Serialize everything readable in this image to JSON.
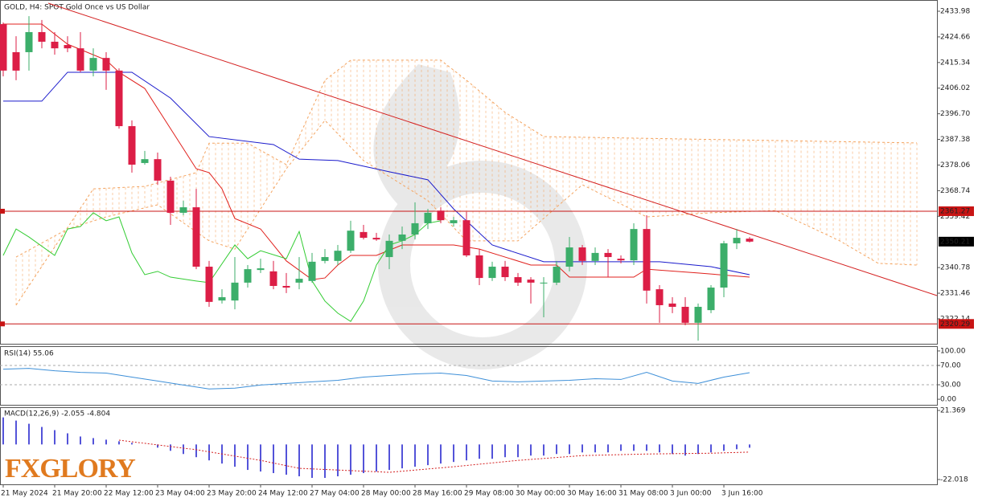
{
  "chart_data": [
    {
      "type": "candlestick",
      "title": "GOLD, H4:  SPOT Gold Once vs US Dollar",
      "categories": [
        "21 May 2024",
        null,
        null,
        null,
        "21 May 20:00",
        null,
        null,
        null,
        "22 May 12:00",
        null,
        null,
        null,
        "23 May 04:00",
        null,
        null,
        null,
        "23 May 20:00",
        null,
        null,
        null,
        "24 May 12:00",
        null,
        null,
        null,
        "27 May 04:00",
        null,
        null,
        null,
        "28 May 00:00",
        null,
        null,
        null,
        "28 May 16:00",
        null,
        null,
        null,
        "29 May 08:00",
        null,
        null,
        null,
        "30 May 00:00",
        null,
        null,
        null,
        "30 May 16:00",
        null,
        null,
        null,
        "31 May 08:00",
        null,
        null,
        null,
        "3 Jun 00:00",
        null,
        null,
        null,
        "3 Jun 16:00",
        null,
        null
      ],
      "open": [
        2429.3,
        2419.1,
        2419.1,
        2426.4,
        2422.9,
        2421.7,
        2420.5,
        2412.4,
        2417.0,
        2412.4,
        2392.2,
        2378.8,
        2380.2,
        2372.4,
        2360.7,
        2362.7,
        2341.1,
        2328.8,
        2328.8,
        2335.3,
        2339.9,
        2339.4,
        2334.1,
        2335.3,
        2335.9,
        2343.2,
        2343.2,
        2346.9,
        2353.7,
        2351.6,
        2344.6,
        2350.5,
        2352.8,
        2356.9,
        2361.5,
        2356.9,
        2358.0,
        2345.2,
        2337.0,
        2341.1,
        2337.3,
        2336.4,
        2335.0,
        2335.3,
        2341.1,
        2348.1,
        2343.2,
        2346.1,
        2344.0,
        2343.4,
        2354.8,
        2332.9,
        2327.7,
        2326.5,
        2320.7,
        2325.3,
        2333.5,
        2349.6,
        2351.3
      ],
      "high": [
        2429.9,
        2424.9,
        2432.2,
        2430.8,
        2426.4,
        2424.9,
        2426.4,
        2420.5,
        2419.1,
        2413.2,
        2394.3,
        2383.2,
        2382.6,
        2373.8,
        2365.1,
        2369.4,
        2343.2,
        2332.9,
        2344.6,
        2341.7,
        2344.0,
        2343.2,
        2338.8,
        2344.6,
        2346.1,
        2347.5,
        2349.0,
        2357.8,
        2356.3,
        2353.4,
        2352.8,
        2355.7,
        2364.5,
        2362.1,
        2362.7,
        2359.2,
        2361.0,
        2347.5,
        2342.9,
        2343.2,
        2338.8,
        2337.3,
        2337.3,
        2343.2,
        2351.9,
        2349.0,
        2348.1,
        2347.5,
        2345.2,
        2356.9,
        2359.8,
        2334.4,
        2330.0,
        2330.0,
        2327.7,
        2334.4,
        2350.5,
        2354.8,
        2351.9
      ],
      "low": [
        2410.3,
        2408.9,
        2412.4,
        2420.5,
        2418.2,
        2419.1,
        2411.8,
        2410.3,
        2405.4,
        2391.3,
        2375.3,
        2378.2,
        2370.9,
        2356.3,
        2359.8,
        2340.2,
        2326.5,
        2327.7,
        2325.6,
        2333.5,
        2338.8,
        2332.9,
        2331.5,
        2332.9,
        2335.3,
        2342.3,
        2341.7,
        2346.1,
        2351.0,
        2350.5,
        2340.2,
        2347.5,
        2351.0,
        2354.8,
        2356.9,
        2355.7,
        2344.6,
        2334.4,
        2335.9,
        2335.9,
        2334.1,
        2327.7,
        2322.7,
        2334.4,
        2339.4,
        2341.7,
        2341.7,
        2337.3,
        2342.3,
        2341.7,
        2327.7,
        2320.7,
        2324.2,
        2319.8,
        2314.2,
        2324.2,
        2330.0,
        2347.5,
        2349.9
      ],
      "close": [
        2412.4,
        2412.4,
        2426.4,
        2422.9,
        2420.5,
        2420.5,
        2412.4,
        2417.0,
        2412.4,
        2392.2,
        2378.2,
        2380.2,
        2372.4,
        2360.7,
        2362.7,
        2341.1,
        2328.3,
        2330.0,
        2335.3,
        2340.2,
        2340.5,
        2334.1,
        2333.5,
        2336.7,
        2342.9,
        2344.6,
        2346.9,
        2354.2,
        2351.6,
        2351.0,
        2350.5,
        2352.8,
        2356.9,
        2360.7,
        2358.0,
        2358.0,
        2345.2,
        2337.0,
        2341.1,
        2337.3,
        2335.3,
        2335.3,
        2335.3,
        2341.1,
        2348.1,
        2343.2,
        2346.1,
        2344.6,
        2343.4,
        2354.8,
        2332.4,
        2327.1,
        2326.5,
        2320.7,
        2326.5,
        2333.5,
        2349.6,
        2351.6,
        2350.21
      ],
      "up_color": "#3cae6a",
      "down_color": "#dc1e46",
      "xlim": [
        -0.25,
        72.56
      ],
      "ylim": [
        2313.07,
        2438.07
      ],
      "yticks": [
        2433.98,
        2424.66,
        2415.34,
        2406.02,
        {
          "value": 2396.7,
          "label": "2396.70"
        },
        2387.38,
        2378.06,
        2368.74,
        2359.42,
        2340.78,
        2331.46,
        2322.14
      ],
      "lines": [
        {
          "color": "#f4a460",
          "style": "dashed",
          "x": [
            1,
            7,
            11,
            15,
            16,
            19,
            22,
            25,
            27,
            34,
            36,
            39,
            42,
            71
          ],
          "values": [
            2327.1,
            2369.4,
            2370.3,
            2375.3,
            2386.0,
            2386.0,
            2378.2,
            2408.9,
            2416.2,
            2416.2,
            2408.9,
            2397.2,
            2388.4,
            2386.1
          ]
        },
        {
          "color": "#f4a460",
          "style": "dashed",
          "x": [
            1,
            5,
            8,
            12,
            16,
            18,
            22,
            25,
            28,
            33,
            36,
            40,
            45,
            50,
            55,
            60,
            65,
            68,
            71
          ],
          "values": [
            2344.6,
            2354.8,
            2359.2,
            2363.6,
            2350.5,
            2347.5,
            2376.7,
            2394.3,
            2379.7,
            2365.1,
            2350.5,
            2350.5,
            2370.9,
            2359.2,
            2360.7,
            2361.5,
            2350.5,
            2342.3,
            2341.7
          ]
        },
        {
          "color": "#1a1acc",
          "style": "solid",
          "x": [
            0,
            3,
            5,
            10,
            13,
            16,
            21,
            23,
            26,
            30,
            33,
            35,
            38,
            42,
            51,
            55,
            58
          ],
          "values": [
            2401.3,
            2401.3,
            2411.8,
            2411.8,
            2402.4,
            2388.4,
            2385.5,
            2380.2,
            2379.7,
            2375.6,
            2372.7,
            2362.1,
            2349.0,
            2342.9,
            2342.9,
            2341.1,
            2338.2
          ]
        },
        {
          "color": "#e0201c",
          "style": "solid",
          "x": [
            0,
            3,
            5,
            8,
            9,
            11,
            13,
            15,
            16,
            17,
            18,
            20,
            22,
            24,
            25,
            26,
            27,
            29,
            31,
            35,
            37,
            39,
            41,
            43,
            44,
            49,
            50,
            54,
            58
          ],
          "values": [
            2429.3,
            2429.3,
            2422.0,
            2416.2,
            2411.8,
            2405.9,
            2391.3,
            2376.7,
            2375.3,
            2369.4,
            2358.6,
            2354.8,
            2343.2,
            2336.4,
            2337.0,
            2341.7,
            2345.2,
            2345.2,
            2349.0,
            2349.0,
            2347.5,
            2344.6,
            2341.7,
            2341.7,
            2337.3,
            2337.3,
            2340.2,
            2338.8,
            2337.3
          ]
        },
        {
          "color": "#33cc33",
          "style": "solid",
          "x": [
            0,
            1,
            2,
            4,
            5,
            6,
            7,
            8,
            9,
            10,
            11,
            12,
            13,
            15,
            16,
            18,
            19,
            20,
            22,
            23,
            24,
            25,
            26,
            27,
            28,
            29,
            30,
            31,
            32,
            33,
            34
          ],
          "values": [
            2345.2,
            2354.8,
            2351.9,
            2345.2,
            2354.8,
            2355.7,
            2360.7,
            2357.8,
            2359.2,
            2346.1,
            2338.2,
            2339.4,
            2337.3,
            2335.9,
            2335.3,
            2349.0,
            2344.0,
            2346.9,
            2344.0,
            2353.9,
            2335.9,
            2328.6,
            2324.2,
            2321.2,
            2328.6,
            2341.7,
            2349.0,
            2350.5,
            2352.8,
            2356.9,
            2357.8
          ]
        }
      ],
      "trendline": {
        "color": "#d42020",
        "x": [
          3.5,
          72.56
        ],
        "values": [
          2436.9,
          2330.6
        ]
      },
      "levels": [
        2361.27,
        2320.29
      ],
      "level_color": "#c81414",
      "last_price": 2350.21
    },
    {
      "type": "line",
      "title": "RSI(14) 55.06",
      "color": "#3d8fd8",
      "x": [
        0,
        2,
        4,
        6,
        8,
        10,
        12,
        14,
        16,
        18,
        20,
        22,
        24,
        26,
        28,
        30,
        32,
        34,
        36,
        38,
        40,
        42,
        44,
        46,
        48,
        50,
        52,
        54,
        56,
        58
      ],
      "values": [
        62.3,
        63.9,
        59.0,
        55.7,
        54.1,
        45.9,
        37.7,
        29.5,
        21.3,
        23.0,
        29.5,
        32.8,
        36.1,
        39.3,
        45.9,
        49.2,
        52.5,
        54.1,
        49.2,
        37.7,
        36.1,
        37.7,
        39.3,
        42.6,
        41.0,
        55.7,
        37.7,
        32.8,
        45.9,
        55.06
      ],
      "xlim": [
        -0.25,
        72.56
      ],
      "ylim": [
        -11.5,
        108.2
      ],
      "yticks": [
        {
          "value": 100,
          "label": "100.00"
        },
        {
          "value": 70,
          "label": "70.00"
        },
        {
          "value": 30,
          "label": "30.00"
        },
        {
          "value": 0,
          "label": "0.00"
        }
      ],
      "levels": [
        70,
        30
      ]
    },
    {
      "type": "macd",
      "title": "MACD(12,26,9) -2.055 -4.804",
      "color": "#1a1acc",
      "values": [
        17,
        15,
        13,
        11,
        9,
        7,
        5,
        4,
        3,
        2,
        1,
        0,
        -2,
        -4,
        -6,
        -8,
        -10,
        -12,
        -14,
        -16,
        -17,
        -18,
        -19,
        -20,
        -21,
        -21,
        -20,
        -19,
        -18,
        -17,
        -16,
        -15,
        -14,
        -13,
        -12,
        -11,
        -10,
        -9,
        -9,
        -8,
        -8,
        -7,
        -7,
        -6,
        -6,
        -5,
        -5,
        -5,
        -4,
        -4,
        -4,
        -5,
        -6,
        -7,
        -6,
        -5,
        -4,
        -3,
        -2.055
      ],
      "signal": {
        "color": "#d42020",
        "x": [
          9,
          15,
          20,
          23,
          30,
          35,
          40,
          45,
          50,
          55,
          58
        ],
        "values": [
          2.7,
          -3.3,
          -10,
          -15,
          -17.5,
          -14,
          -10,
          -7,
          -6,
          -5.5,
          -4.804
        ]
      },
      "xlim": [
        -0.25,
        72.56
      ],
      "ylim": [
        -25.05,
        22.88
      ],
      "yticks": [
        21.369,
        -22.018
      ]
    }
  ],
  "logo": "FXGLORY"
}
